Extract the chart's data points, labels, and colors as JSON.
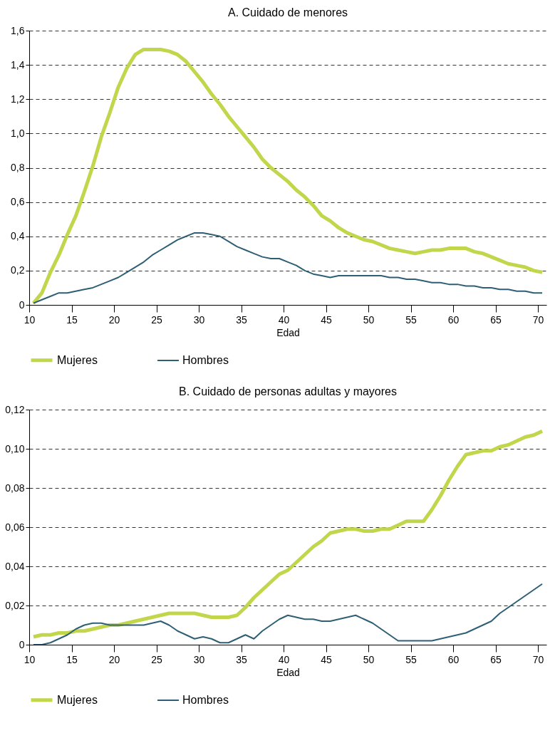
{
  "chart_data": [
    {
      "type": "line",
      "title": "A. Cuidado de menores",
      "xlabel": "Edad",
      "legend": "bottom",
      "grid": "y",
      "line_style": "solid",
      "marker": "none",
      "x": [
        10.5,
        11.5,
        12.5,
        13.5,
        14.5,
        15.5,
        16.5,
        17.5,
        18.5,
        19.5,
        20.5,
        21.5,
        22.5,
        23.5,
        24.5,
        25.5,
        26.5,
        27.5,
        28.5,
        29.5,
        30.5,
        31.5,
        32.5,
        33.5,
        34.5,
        35.5,
        36.5,
        37.5,
        38.5,
        39.5,
        40.5,
        41.5,
        42.5,
        43.5,
        44.5,
        45.5,
        46.5,
        47.5,
        48.5,
        49.5,
        50.5,
        51.5,
        52.5,
        53.5,
        54.5,
        55.5,
        56.5,
        57.5,
        58.5,
        59.5,
        60.5,
        61.5,
        62.5,
        63.5,
        64.5,
        65.5,
        66.5,
        67.5,
        68.5,
        69.5,
        70.5
      ],
      "xlim": [
        10,
        71
      ],
      "xticks": [
        10,
        15,
        20,
        25,
        30,
        35,
        40,
        45,
        50,
        55,
        60,
        65,
        70
      ],
      "ylim": [
        0,
        1.6
      ],
      "yticks": [
        0,
        {
          "value": 0.2,
          "label": "0,2"
        },
        {
          "value": 0.4,
          "label": "0,4"
        },
        {
          "value": 0.6,
          "label": "0,6"
        },
        {
          "value": 0.8,
          "label": "0,8"
        },
        {
          "value": 1.0,
          "label": "1,0"
        },
        {
          "value": 1.2,
          "label": "1,2"
        },
        {
          "value": 1.4,
          "label": "1,4"
        },
        {
          "value": 1.6,
          "label": "1,6"
        }
      ],
      "series": [
        {
          "name": "Mujeres",
          "color": "#c2d64b",
          "values": [
            0.01,
            0.07,
            0.19,
            0.29,
            0.41,
            0.52,
            0.66,
            0.81,
            0.98,
            1.12,
            1.27,
            1.38,
            1.46,
            1.49,
            1.49,
            1.49,
            1.48,
            1.46,
            1.42,
            1.36,
            1.3,
            1.23,
            1.17,
            1.1,
            1.04,
            0.98,
            0.92,
            0.85,
            0.8,
            0.76,
            0.72,
            0.67,
            0.63,
            0.58,
            0.52,
            0.49,
            0.45,
            0.42,
            0.4,
            0.38,
            0.37,
            0.35,
            0.33,
            0.32,
            0.31,
            0.3,
            0.31,
            0.32,
            0.32,
            0.33,
            0.33,
            0.33,
            0.31,
            0.3,
            0.28,
            0.26,
            0.24,
            0.23,
            0.22,
            0.2,
            0.19
          ]
        },
        {
          "name": "Hombres",
          "color": "#2e5f74",
          "values": [
            0.01,
            0.03,
            0.05,
            0.07,
            0.07,
            0.08,
            0.09,
            0.1,
            0.12,
            0.14,
            0.16,
            0.19,
            0.22,
            0.25,
            0.29,
            0.32,
            0.35,
            0.38,
            0.4,
            0.42,
            0.42,
            0.41,
            0.4,
            0.37,
            0.34,
            0.32,
            0.3,
            0.28,
            0.27,
            0.27,
            0.25,
            0.23,
            0.2,
            0.18,
            0.17,
            0.16,
            0.17,
            0.17,
            0.17,
            0.17,
            0.17,
            0.17,
            0.16,
            0.16,
            0.15,
            0.15,
            0.14,
            0.13,
            0.13,
            0.12,
            0.12,
            0.11,
            0.11,
            0.1,
            0.1,
            0.09,
            0.09,
            0.08,
            0.08,
            0.07,
            0.07
          ]
        }
      ]
    },
    {
      "type": "line",
      "title": "B. Cuidado de personas adultas y mayores",
      "xlabel": "Edad",
      "legend": "bottom",
      "grid": "y",
      "line_style": "solid",
      "marker": "none",
      "x": [
        10.5,
        11.5,
        12.5,
        13.5,
        14.5,
        15.5,
        16.5,
        17.5,
        18.5,
        19.5,
        20.5,
        21.5,
        22.5,
        23.5,
        24.5,
        25.5,
        26.5,
        27.5,
        28.5,
        29.5,
        30.5,
        31.5,
        32.5,
        33.5,
        34.5,
        35.5,
        36.5,
        37.5,
        38.5,
        39.5,
        40.5,
        41.5,
        42.5,
        43.5,
        44.5,
        45.5,
        46.5,
        47.5,
        48.5,
        49.5,
        50.5,
        51.5,
        52.5,
        53.5,
        54.5,
        55.5,
        56.5,
        57.5,
        58.5,
        59.5,
        60.5,
        61.5,
        62.5,
        63.5,
        64.5,
        65.5,
        66.5,
        67.5,
        68.5,
        69.5,
        70.5
      ],
      "xlim": [
        10,
        71
      ],
      "xticks": [
        10,
        15,
        20,
        25,
        30,
        35,
        40,
        45,
        50,
        55,
        60,
        65,
        70
      ],
      "ylim": [
        0,
        0.12
      ],
      "yticks": [
        0,
        {
          "value": 0.02,
          "label": "0,02"
        },
        {
          "value": 0.04,
          "label": "0,04"
        },
        {
          "value": 0.06,
          "label": "0,06"
        },
        {
          "value": 0.08,
          "label": "0,08"
        },
        {
          "value": 0.1,
          "label": "0,10"
        },
        {
          "value": 0.12,
          "label": "0,12"
        }
      ],
      "series": [
        {
          "name": "Mujeres",
          "color": "#c2d64b",
          "values": [
            0.004,
            0.005,
            0.005,
            0.006,
            0.006,
            0.007,
            0.007,
            0.008,
            0.009,
            0.01,
            0.01,
            0.011,
            0.012,
            0.013,
            0.014,
            0.015,
            0.016,
            0.016,
            0.016,
            0.016,
            0.015,
            0.014,
            0.014,
            0.014,
            0.015,
            0.019,
            0.024,
            0.028,
            0.032,
            0.036,
            0.038,
            0.042,
            0.046,
            0.05,
            0.053,
            0.057,
            0.058,
            0.059,
            0.059,
            0.058,
            0.058,
            0.059,
            0.059,
            0.061,
            0.063,
            0.063,
            0.063,
            0.069,
            0.076,
            0.084,
            0.091,
            0.097,
            0.098,
            0.099,
            0.099,
            0.101,
            0.102,
            0.104,
            0.106,
            0.107,
            0.109
          ]
        },
        {
          "name": "Hombres",
          "color": "#2e5f74",
          "values": [
            0,
            0,
            0.001,
            0.003,
            0.005,
            0.008,
            0.01,
            0.011,
            0.011,
            0.01,
            0.01,
            0.01,
            0.01,
            0.01,
            0.011,
            0.012,
            0.01,
            0.007,
            0.005,
            0.003,
            0.004,
            0.003,
            0.001,
            0.001,
            0.003,
            0.005,
            0.003,
            0.007,
            0.01,
            0.013,
            0.015,
            0.014,
            0.013,
            0.013,
            0.012,
            0.012,
            0.013,
            0.014,
            0.015,
            0.013,
            0.011,
            0.008,
            0.005,
            0.002,
            0.002,
            0.002,
            0.002,
            0.002,
            0.003,
            0.004,
            0.005,
            0.006,
            0.008,
            0.01,
            0.012,
            0.016,
            0.019,
            0.022,
            0.025,
            0.028,
            0.031
          ]
        }
      ]
    }
  ]
}
